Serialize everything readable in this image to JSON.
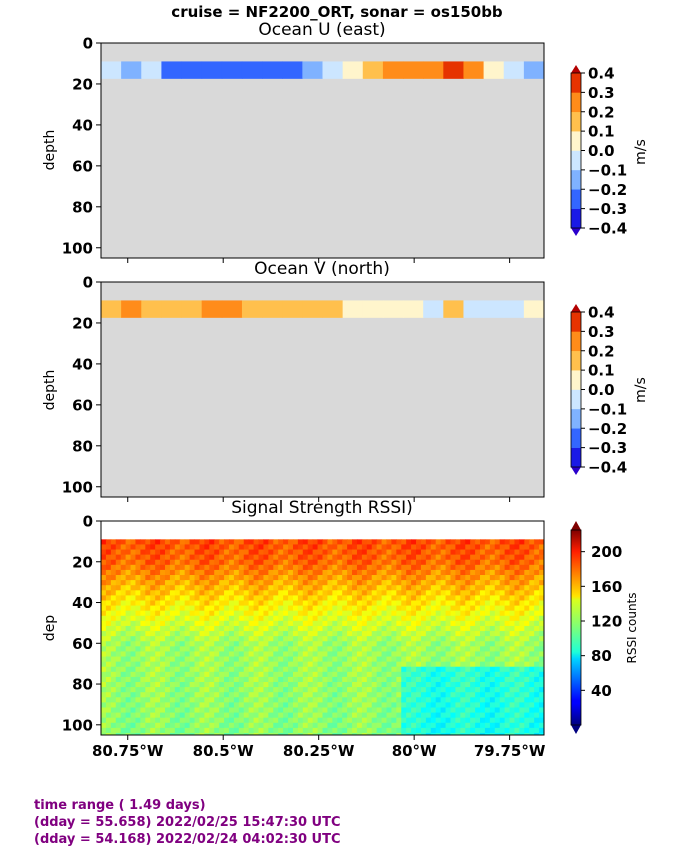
{
  "suptitle": "cruise = NF2200_ORT,  sonar = os150bb",
  "x_tick_labels": [
    "80.75°W",
    "80.5°W",
    "80.25°W",
    "80°W",
    "79.75°W"
  ],
  "x_tick_values": [
    -80.75,
    -80.5,
    -80.25,
    -80.0,
    -79.75
  ],
  "xlim": [
    -80.82,
    -79.66
  ],
  "panels": [
    {
      "title": "Ocean U (east)",
      "ylabel": "depth",
      "ylim": [
        105,
        0
      ],
      "y_ticks": [
        0,
        20,
        40,
        60,
        80,
        100
      ],
      "cbar_label": "m/s",
      "cbar_ticks": [
        "0.4",
        "0.3",
        "0.2",
        "0.1",
        "0.0",
        "−0.1",
        "−0.2",
        "−0.3",
        "−0.4"
      ]
    },
    {
      "title": "Ocean V (north)",
      "ylabel": "depth",
      "ylim": [
        105,
        0
      ],
      "y_ticks": [
        0,
        20,
        40,
        60,
        80,
        100
      ],
      "cbar_label": "m/s",
      "cbar_ticks": [
        "0.4",
        "0.3",
        "0.2",
        "0.1",
        "0.0",
        "−0.1",
        "−0.2",
        "−0.3",
        "−0.4"
      ]
    },
    {
      "title": "Signal Strength RSSI)",
      "ylabel": "dep",
      "ylim": [
        105,
        0
      ],
      "y_ticks": [
        0,
        20,
        40,
        60,
        80,
        100
      ],
      "cbar_label": "RSSI counts",
      "cbar_ticks": [
        "200",
        "160",
        "120",
        "80",
        "40"
      ]
    }
  ],
  "chart_data": {
    "type": "heatmap",
    "x_unit": "longitude (degrees)",
    "y_unit": "depth (m)",
    "data_depth_range": [
      9,
      105
    ],
    "velocity_range": [
      -0.4,
      0.4
    ],
    "rssi_range": [
      0,
      225
    ],
    "u_east_top_bins": [
      -0.05,
      -0.15,
      -0.1,
      -0.25,
      -0.25,
      -0.25,
      -0.3,
      -0.3,
      -0.25,
      -0.3,
      -0.15,
      -0.05,
      0.05,
      0.15,
      0.2,
      0.25,
      0.3,
      0.35,
      0.3,
      0.05,
      -0.1,
      -0.2
    ],
    "v_north_top_bins": [
      0.15,
      0.2,
      0.15,
      0.1,
      0.15,
      0.2,
      0.2,
      0.15,
      0.15,
      0.15,
      0.1,
      0.1,
      0.05,
      0.05,
      0.05,
      0.0,
      -0.05,
      0.1,
      -0.05,
      -0.1,
      -0.1,
      0.0
    ],
    "rssi_depth_profile": [
      {
        "depth": 10,
        "rssi": 180
      },
      {
        "depth": 20,
        "rssi": 175
      },
      {
        "depth": 30,
        "rssi": 160
      },
      {
        "depth": 40,
        "rssi": 145
      },
      {
        "depth": 60,
        "rssi": 120
      },
      {
        "depth": 80,
        "rssi": 118
      },
      {
        "depth": 100,
        "rssi": 115
      }
    ]
  },
  "footer": {
    "line1": "time range ( 1.49 days)",
    "line2": "(dday = 55.658) 2022/02/25 15:47:30 UTC",
    "line3": "(dday = 54.168) 2022/02/24 04:02:30 UTC"
  }
}
